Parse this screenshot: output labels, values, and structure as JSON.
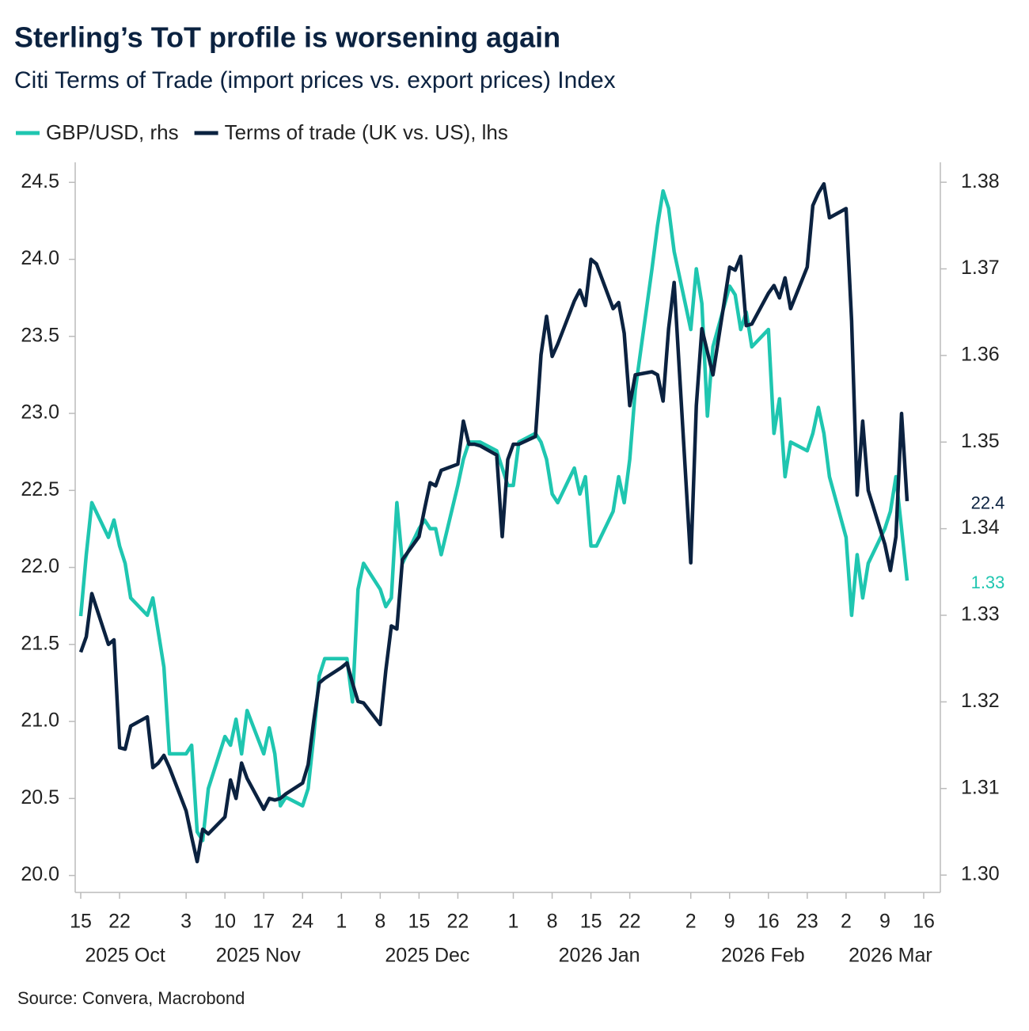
{
  "chart_data": {
    "type": "line",
    "title": "Sterling’s ToT profile is worsening again",
    "subtitle": "Citi Terms of Trade (import prices vs. export prices) Index",
    "source": "Source: Convera, Macrobond",
    "x": [
      "2025-10-15",
      "2025-10-16",
      "2025-10-17",
      "2025-10-20",
      "2025-10-21",
      "2025-10-22",
      "2025-10-23",
      "2025-10-24",
      "2025-10-27",
      "2025-10-28",
      "2025-10-29",
      "2025-10-30",
      "2025-10-31",
      "2025-11-03",
      "2025-11-04",
      "2025-11-05",
      "2025-11-06",
      "2025-11-07",
      "2025-11-10",
      "2025-11-11",
      "2025-11-12",
      "2025-11-13",
      "2025-11-14",
      "2025-11-17",
      "2025-11-18",
      "2025-11-19",
      "2025-11-20",
      "2025-11-21",
      "2025-11-24",
      "2025-11-25",
      "2025-11-26",
      "2025-11-27",
      "2025-11-28",
      "2025-12-01",
      "2025-12-02",
      "2025-12-03",
      "2025-12-04",
      "2025-12-05",
      "2025-12-08",
      "2025-12-09",
      "2025-12-10",
      "2025-12-11",
      "2025-12-12",
      "2025-12-15",
      "2025-12-16",
      "2025-12-17",
      "2025-12-18",
      "2025-12-19",
      "2025-12-22",
      "2025-12-23",
      "2025-12-24",
      "2025-12-25",
      "2025-12-26",
      "2025-12-29",
      "2025-12-30",
      "2025-12-31",
      "2026-01-01",
      "2026-01-02",
      "2026-01-05",
      "2026-01-06",
      "2026-01-07",
      "2026-01-08",
      "2026-01-09",
      "2026-01-12",
      "2026-01-13",
      "2026-01-14",
      "2026-01-15",
      "2026-01-16",
      "2026-01-19",
      "2026-01-20",
      "2026-01-21",
      "2026-01-22",
      "2026-01-23",
      "2026-01-26",
      "2026-01-27",
      "2026-01-28",
      "2026-01-29",
      "2026-01-30",
      "2026-02-02",
      "2026-02-03",
      "2026-02-04",
      "2026-02-05",
      "2026-02-06",
      "2026-02-09",
      "2026-02-10",
      "2026-02-11",
      "2026-02-12",
      "2026-02-13",
      "2026-02-16",
      "2026-02-17",
      "2026-02-18",
      "2026-02-19",
      "2026-02-20",
      "2026-02-23",
      "2026-02-24",
      "2026-02-25",
      "2026-02-26",
      "2026-02-27",
      "2026-03-02",
      "2026-03-03",
      "2026-03-04",
      "2026-03-05",
      "2026-03-06",
      "2026-03-09",
      "2026-03-10",
      "2026-03-11",
      "2026-03-12",
      "2026-03-13"
    ],
    "series": [
      {
        "name": "GBP/USD, rhs",
        "color": "#1fc6b0",
        "axis": "y2",
        "end_label": "1.33",
        "values": [
          1.3299,
          1.337,
          1.343,
          1.339,
          1.341,
          1.338,
          1.336,
          1.332,
          1.33,
          1.332,
          1.328,
          1.324,
          1.314,
          1.314,
          1.315,
          1.305,
          1.304,
          1.31,
          1.316,
          1.315,
          1.318,
          1.314,
          1.319,
          1.314,
          1.317,
          1.314,
          1.308,
          1.309,
          1.308,
          1.31,
          1.316,
          1.323,
          1.325,
          1.325,
          1.325,
          1.32,
          1.333,
          1.336,
          1.333,
          1.331,
          1.332,
          1.343,
          1.336,
          1.34,
          1.341,
          1.34,
          1.34,
          1.337,
          1.345,
          1.348,
          1.35,
          1.35,
          1.35,
          1.349,
          1.347,
          1.345,
          1.345,
          1.35,
          1.351,
          1.35,
          1.348,
          1.344,
          1.343,
          1.347,
          1.344,
          1.346,
          1.338,
          1.338,
          1.342,
          1.346,
          1.343,
          1.348,
          1.356,
          1.37,
          1.375,
          1.379,
          1.377,
          1.372,
          1.363,
          1.37,
          1.366,
          1.353,
          1.361,
          1.368,
          1.367,
          1.363,
          1.365,
          1.361,
          1.363,
          1.351,
          1.355,
          1.346,
          1.35,
          1.349,
          1.351,
          1.354,
          1.351,
          1.346,
          1.339,
          1.33,
          1.337,
          1.332,
          1.336,
          1.34,
          1.342,
          1.346,
          1.34,
          1.334
        ]
      },
      {
        "name": "Terms of trade (UK vs. US), lhs",
        "color": "#0b2240",
        "axis": "y",
        "end_label": "22.4",
        "values": [
          21.45,
          21.55,
          21.83,
          21.5,
          21.53,
          20.83,
          20.82,
          20.97,
          21.03,
          20.7,
          20.73,
          20.78,
          20.7,
          20.42,
          20.25,
          20.09,
          20.3,
          20.27,
          20.38,
          20.62,
          20.5,
          20.73,
          20.63,
          20.43,
          20.5,
          20.49,
          20.5,
          20.53,
          20.6,
          20.72,
          21.0,
          21.25,
          21.28,
          21.35,
          21.38,
          21.25,
          21.13,
          21.12,
          20.98,
          21.33,
          21.62,
          21.6,
          22.05,
          22.2,
          22.38,
          22.55,
          22.53,
          22.63,
          22.67,
          22.95,
          22.8,
          22.8,
          22.79,
          22.73,
          22.2,
          22.7,
          22.8,
          22.8,
          22.85,
          23.38,
          23.63,
          23.37,
          23.45,
          23.73,
          23.8,
          23.7,
          24.0,
          23.97,
          23.68,
          23.72,
          23.52,
          23.05,
          23.25,
          23.27,
          23.25,
          23.08,
          23.55,
          23.85,
          22.03,
          23.05,
          23.55,
          23.4,
          23.25,
          23.95,
          23.93,
          24.02,
          23.57,
          23.58,
          23.78,
          23.83,
          23.75,
          23.88,
          23.68,
          23.95,
          24.35,
          24.43,
          24.49,
          24.27,
          24.33,
          23.6,
          22.47,
          22.95,
          22.5,
          22.15,
          21.98,
          22.2,
          23.0,
          22.43
        ]
      }
    ],
    "xlim": [
      "2025-10-14",
      "2026-03-19"
    ],
    "xticks": [
      {
        "value": "2025-10-15",
        "label": "15"
      },
      {
        "value": "2025-10-22",
        "label": "22"
      },
      {
        "value": "2025-11-03",
        "label": "3"
      },
      {
        "value": "2025-11-10",
        "label": "10"
      },
      {
        "value": "2025-11-17",
        "label": "17"
      },
      {
        "value": "2025-11-24",
        "label": "24"
      },
      {
        "value": "2025-12-01",
        "label": "1"
      },
      {
        "value": "2025-12-08",
        "label": "8"
      },
      {
        "value": "2025-12-15",
        "label": "15"
      },
      {
        "value": "2025-12-22",
        "label": "22"
      },
      {
        "value": "2026-01-01",
        "label": "1"
      },
      {
        "value": "2026-01-08",
        "label": "8"
      },
      {
        "value": "2026-01-15",
        "label": "15"
      },
      {
        "value": "2026-01-22",
        "label": "22"
      },
      {
        "value": "2026-02-02",
        "label": "2"
      },
      {
        "value": "2026-02-09",
        "label": "9"
      },
      {
        "value": "2026-02-16",
        "label": "16"
      },
      {
        "value": "2026-02-23",
        "label": "23"
      },
      {
        "value": "2026-03-02",
        "label": "2"
      },
      {
        "value": "2026-03-09",
        "label": "9"
      },
      {
        "value": "2026-03-16",
        "label": "16"
      }
    ],
    "x_groups": [
      {
        "value": "2025-10-01",
        "label": "2025 Oct"
      },
      {
        "value": "2025-11-01",
        "label": "2025 Nov"
      },
      {
        "value": "2025-12-01",
        "label": "2025 Dec"
      },
      {
        "value": "2026-01-01",
        "label": "2026 Jan"
      },
      {
        "value": "2026-02-01",
        "label": "2026 Feb"
      },
      {
        "value": "2026-03-01",
        "label": "2026 Mar"
      }
    ],
    "ylim": [
      19.89,
      24.63
    ],
    "yticks": [
      {
        "value": 20,
        "label": "20.0"
      },
      20.5,
      {
        "value": 21,
        "label": "21.0"
      },
      21.5,
      {
        "value": 22,
        "label": "22.0"
      },
      22.5,
      {
        "value": 23,
        "label": "23.0"
      },
      23.5,
      {
        "value": 24,
        "label": "24.0"
      },
      24.5
    ],
    "y2lim": [
      1.298,
      1.3823
    ],
    "y2ticks": [
      {
        "value": 1.3,
        "label": "1.30"
      },
      1.31,
      1.32,
      1.33,
      1.34,
      1.35,
      1.36,
      1.37,
      1.38
    ],
    "grid": false
  }
}
